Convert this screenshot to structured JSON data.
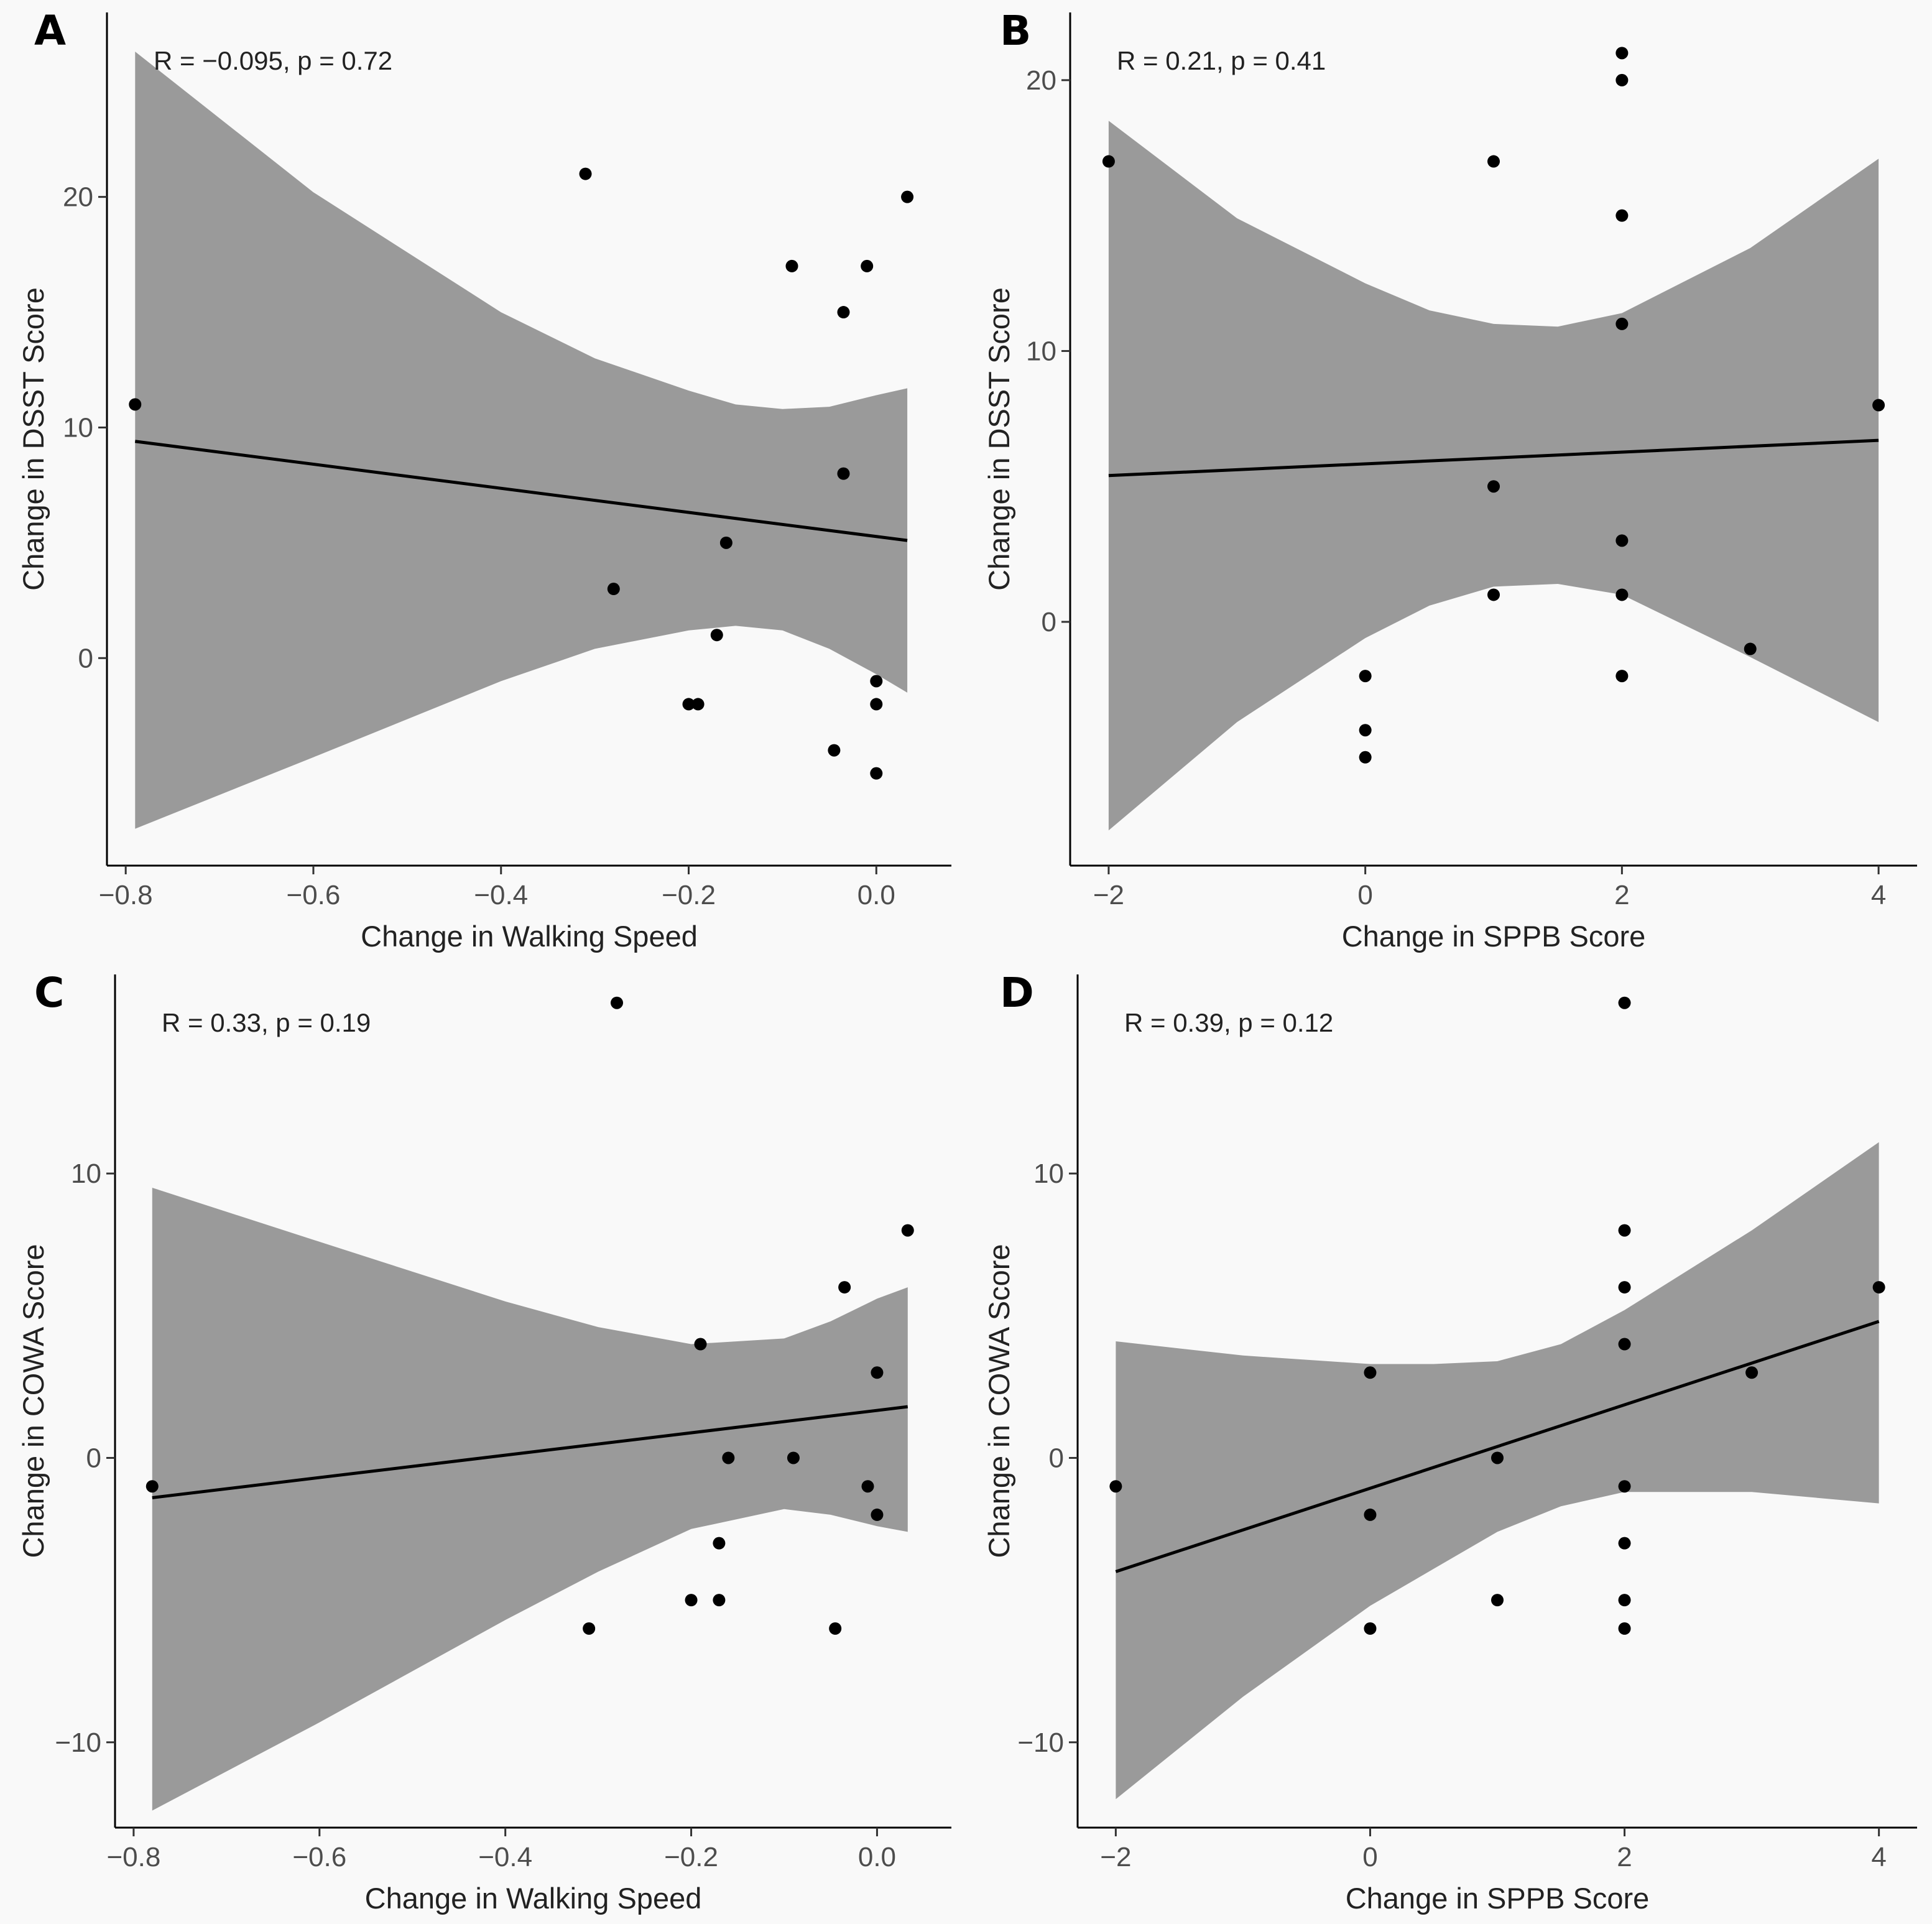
{
  "chart_data": [
    {
      "id": "A",
      "type": "scatter",
      "panel_label": "A",
      "xlabel": "Change in Walking Speed",
      "ylabel": "Change in DSST Score",
      "annotation": {
        "r_text": "R = −0.095",
        "p_text": "p = 0.72"
      },
      "xlim": [
        -0.82,
        0.08
      ],
      "ylim": [
        -9,
        28
      ],
      "xticks": [
        -0.8,
        -0.6,
        -0.4,
        -0.2,
        0.0
      ],
      "xtick_labels": [
        "−0.8",
        "−0.6",
        "−0.4",
        "−0.2",
        "0.0"
      ],
      "yticks": [
        0,
        10,
        20
      ],
      "ytick_labels": [
        "0",
        "10",
        "20"
      ],
      "fit": {
        "x": [
          -0.79,
          0.033
        ],
        "y": [
          9.4,
          5.1
        ]
      },
      "band": {
        "x": [
          -0.79,
          -0.6,
          -0.4,
          -0.3,
          -0.2,
          -0.15,
          -0.1,
          -0.05,
          0.0,
          0.033
        ],
        "upper": [
          26.3,
          20.2,
          15.0,
          13.0,
          11.6,
          11.0,
          10.8,
          10.9,
          11.4,
          11.7
        ],
        "lower": [
          -7.4,
          -4.3,
          -1.0,
          0.4,
          1.2,
          1.4,
          1.2,
          0.4,
          -0.7,
          -1.5
        ]
      },
      "points": [
        {
          "x": -0.79,
          "y": 11
        },
        {
          "x": -0.31,
          "y": 21
        },
        {
          "x": -0.28,
          "y": 3
        },
        {
          "x": -0.2,
          "y": -2
        },
        {
          "x": -0.19,
          "y": -2
        },
        {
          "x": -0.17,
          "y": 1
        },
        {
          "x": -0.16,
          "y": 5
        },
        {
          "x": -0.09,
          "y": 17
        },
        {
          "x": -0.045,
          "y": -4
        },
        {
          "x": -0.035,
          "y": 15
        },
        {
          "x": -0.035,
          "y": 8
        },
        {
          "x": -0.01,
          "y": 17
        },
        {
          "x": 0.0,
          "y": -1
        },
        {
          "x": 0.0,
          "y": -2
        },
        {
          "x": 0.0,
          "y": -5
        },
        {
          "x": 0.033,
          "y": 20
        }
      ]
    },
    {
      "id": "B",
      "type": "scatter",
      "panel_label": "B",
      "xlabel": "Change in SPPB Score",
      "ylabel": "Change in DSST Score",
      "annotation": {
        "r_text": "R = 0.21",
        "p_text": "p = 0.41"
      },
      "xlim": [
        -2.3,
        4.3
      ],
      "ylim": [
        -9,
        22.5
      ],
      "xticks": [
        -2,
        0,
        2,
        4
      ],
      "xtick_labels": [
        "−2",
        "0",
        "2",
        "4"
      ],
      "yticks": [
        0,
        10,
        20
      ],
      "ytick_labels": [
        "0",
        "10",
        "20"
      ],
      "fit": {
        "x": [
          -2,
          4
        ],
        "y": [
          5.4,
          6.7
        ]
      },
      "band": {
        "x": [
          -2,
          -1,
          0,
          0.5,
          1,
          1.5,
          2,
          3,
          4
        ],
        "upper": [
          18.5,
          14.9,
          12.5,
          11.5,
          11.0,
          10.9,
          11.4,
          13.8,
          17.1
        ],
        "lower": [
          -7.7,
          -3.7,
          -0.6,
          0.6,
          1.3,
          1.4,
          1.0,
          -1.3,
          -3.7
        ]
      },
      "points": [
        {
          "x": -2,
          "y": 17
        },
        {
          "x": 0,
          "y": -2
        },
        {
          "x": 0,
          "y": -4
        },
        {
          "x": 0,
          "y": -5
        },
        {
          "x": 1,
          "y": 17
        },
        {
          "x": 1,
          "y": 5
        },
        {
          "x": 1,
          "y": 1
        },
        {
          "x": 2,
          "y": 21
        },
        {
          "x": 2,
          "y": 20
        },
        {
          "x": 2,
          "y": 15
        },
        {
          "x": 2,
          "y": 11
        },
        {
          "x": 2,
          "y": 3
        },
        {
          "x": 2,
          "y": 1
        },
        {
          "x": 2,
          "y": -2
        },
        {
          "x": 3,
          "y": -1
        },
        {
          "x": 4,
          "y": 8
        }
      ]
    },
    {
      "id": "C",
      "type": "scatter",
      "panel_label": "C",
      "xlabel": "Change in Walking Speed",
      "ylabel": "Change in COWA Score",
      "annotation": {
        "r_text": "R = 0.33",
        "p_text": "p = 0.19"
      },
      "xlim": [
        -0.82,
        0.08
      ],
      "ylim": [
        -13,
        17
      ],
      "xticks": [
        -0.8,
        -0.6,
        -0.4,
        -0.2,
        0.0
      ],
      "xtick_labels": [
        "−0.8",
        "−0.6",
        "−0.4",
        "−0.2",
        "0.0"
      ],
      "yticks": [
        -10,
        0,
        10
      ],
      "ytick_labels": [
        "−10",
        "0",
        "10"
      ],
      "fit": {
        "x": [
          -0.78,
          0.033
        ],
        "y": [
          -1.4,
          1.8
        ]
      },
      "band": {
        "x": [
          -0.78,
          -0.6,
          -0.4,
          -0.3,
          -0.2,
          -0.1,
          -0.05,
          0.0,
          0.033
        ],
        "upper": [
          9.5,
          7.6,
          5.5,
          4.6,
          4.0,
          4.2,
          4.8,
          5.6,
          6.0
        ],
        "lower": [
          -12.4,
          -9.3,
          -5.7,
          -4.0,
          -2.5,
          -1.8,
          -2.0,
          -2.4,
          -2.6
        ]
      },
      "points": [
        {
          "x": -0.78,
          "y": -1
        },
        {
          "x": -0.31,
          "y": -6
        },
        {
          "x": -0.28,
          "y": 16
        },
        {
          "x": -0.2,
          "y": -5
        },
        {
          "x": -0.19,
          "y": 4
        },
        {
          "x": -0.17,
          "y": -3
        },
        {
          "x": -0.17,
          "y": -5
        },
        {
          "x": -0.16,
          "y": 0
        },
        {
          "x": -0.09,
          "y": 0
        },
        {
          "x": -0.045,
          "y": -6
        },
        {
          "x": -0.035,
          "y": 6
        },
        {
          "x": -0.01,
          "y": -1
        },
        {
          "x": 0.0,
          "y": 3
        },
        {
          "x": 0.0,
          "y": -2
        },
        {
          "x": 0.033,
          "y": 8
        }
      ]
    },
    {
      "id": "D",
      "type": "scatter",
      "panel_label": "D",
      "xlabel": "Change in SPPB Score",
      "ylabel": "Change in COWA Score",
      "annotation": {
        "r_text": "R = 0.39",
        "p_text": "p = 0.12"
      },
      "xlim": [
        -2.3,
        4.3
      ],
      "ylim": [
        -13,
        17
      ],
      "xticks": [
        -2,
        0,
        2,
        4
      ],
      "xtick_labels": [
        "−2",
        "0",
        "2",
        "4"
      ],
      "yticks": [
        -10,
        0,
        10
      ],
      "ytick_labels": [
        "−10",
        "0",
        "10"
      ],
      "fit": {
        "x": [
          -2,
          4
        ],
        "y": [
          -4.0,
          4.8
        ]
      },
      "band": {
        "x": [
          -2,
          -1,
          0,
          0.5,
          1,
          1.5,
          2,
          3,
          4
        ],
        "upper": [
          4.1,
          3.6,
          3.3,
          3.3,
          3.4,
          4.0,
          5.2,
          8.0,
          11.1
        ],
        "lower": [
          -12.0,
          -8.4,
          -5.2,
          -3.9,
          -2.6,
          -1.7,
          -1.2,
          -1.2,
          -1.6
        ]
      },
      "points": [
        {
          "x": -2,
          "y": -1
        },
        {
          "x": 0,
          "y": 3
        },
        {
          "x": 0,
          "y": -2
        },
        {
          "x": 0,
          "y": -6
        },
        {
          "x": 1,
          "y": 0
        },
        {
          "x": 1,
          "y": -5
        },
        {
          "x": 2,
          "y": 16
        },
        {
          "x": 2,
          "y": 8
        },
        {
          "x": 2,
          "y": 6
        },
        {
          "x": 2,
          "y": 4
        },
        {
          "x": 2,
          "y": -1
        },
        {
          "x": 2,
          "y": -3
        },
        {
          "x": 2,
          "y": -5
        },
        {
          "x": 2,
          "y": -6
        },
        {
          "x": 3,
          "y": 3
        },
        {
          "x": 4,
          "y": 6
        }
      ]
    }
  ]
}
